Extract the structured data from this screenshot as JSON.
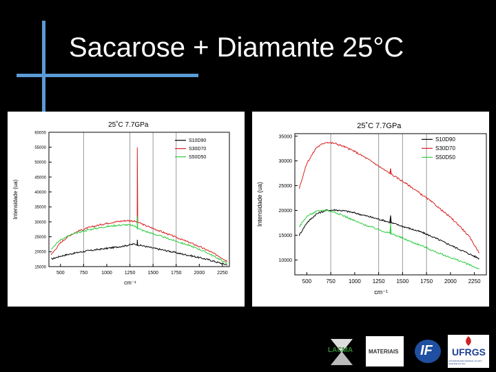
{
  "slide": {
    "title": "Sacarose + Diamante 25°C",
    "colors": {
      "background": "#000000",
      "accent": "#5b9bd5",
      "title": "#ffffff"
    }
  },
  "chart_data": [
    {
      "type": "line",
      "title": "25˚C 7.7GPa",
      "xlabel": "cm⁻¹",
      "ylabel": "Intensidade (ua)",
      "xlim": [
        375,
        2325
      ],
      "ylim": [
        15000,
        60000
      ],
      "xticks": [
        500,
        750,
        1000,
        1250,
        1500,
        1750,
        2000,
        2250
      ],
      "yticks": [
        15000,
        20000,
        25000,
        30000,
        35000,
        40000,
        45000,
        50000,
        55000,
        60000
      ],
      "vlines": [
        750,
        1250,
        1500,
        1750
      ],
      "legend_position": "top-right",
      "series": [
        {
          "name": "S10D90",
          "color": "#000000",
          "x": [
            400,
            500,
            600,
            700,
            800,
            900,
            1000,
            1100,
            1200,
            1250,
            1300,
            1350,
            1400,
            1500,
            1600,
            1700,
            1800,
            1900,
            2000,
            2100,
            2200,
            2250,
            2300
          ],
          "y": [
            17500,
            18500,
            19200,
            19800,
            20300,
            20700,
            21100,
            21500,
            22000,
            22300,
            22600,
            22200,
            21900,
            21200,
            20600,
            20000,
            19300,
            18700,
            18000,
            17300,
            16400,
            16000,
            15600
          ],
          "peaks": [
            {
              "x": 1330,
              "y": 24000
            }
          ]
        },
        {
          "name": "S30D70",
          "color": "#d62020",
          "x": [
            400,
            500,
            600,
            700,
            800,
            900,
            1000,
            1100,
            1200,
            1250,
            1300,
            1350,
            1400,
            1500,
            1600,
            1700,
            1800,
            1900,
            2000,
            2100,
            2200,
            2250,
            2300
          ],
          "y": [
            19000,
            23000,
            25500,
            27000,
            28000,
            28800,
            29500,
            30000,
            30400,
            30400,
            30200,
            29700,
            29000,
            27800,
            26600,
            25400,
            24200,
            23000,
            21700,
            20300,
            18700,
            17800,
            16800
          ],
          "peaks": [
            {
              "x": 1330,
              "y": 55000
            }
          ]
        },
        {
          "name": "S50D50",
          "color": "#2ecc40",
          "x": [
            400,
            500,
            600,
            700,
            800,
            900,
            1000,
            1100,
            1200,
            1250,
            1300,
            1350,
            1400,
            1500,
            1600,
            1700,
            1800,
            1900,
            2000,
            2100,
            2200,
            2250,
            2300
          ],
          "y": [
            21000,
            24000,
            25500,
            26500,
            27300,
            27900,
            28400,
            28800,
            29000,
            28900,
            28600,
            27600,
            27000,
            26000,
            25000,
            24000,
            23000,
            22000,
            20800,
            19400,
            17800,
            16900,
            16000
          ],
          "peaks": [
            {
              "x": 1330,
              "y": 32000
            }
          ]
        }
      ]
    },
    {
      "type": "line",
      "title": "25˚C 7.7GPa",
      "xlabel": "cm⁻¹",
      "ylabel": "Intensidade (ua)",
      "xlim": [
        375,
        2375
      ],
      "ylim": [
        7000,
        35500
      ],
      "xticks": [
        500,
        750,
        1000,
        1250,
        1500,
        1750,
        2000,
        2250
      ],
      "yticks": [
        10000,
        15000,
        20000,
        25000,
        30000,
        35000
      ],
      "vlines": [
        750,
        1250,
        1500,
        1750
      ],
      "legend_position": "top-right",
      "series": [
        {
          "name": "S10D90",
          "color": "#000000",
          "x": [
            420,
            500,
            600,
            700,
            800,
            900,
            1000,
            1100,
            1200,
            1300,
            1400,
            1500,
            1600,
            1700,
            1800,
            1900,
            2000,
            2100,
            2200,
            2300
          ],
          "y": [
            15000,
            17500,
            19300,
            20000,
            20100,
            19900,
            19500,
            19000,
            18500,
            18000,
            17400,
            16800,
            16200,
            15600,
            14800,
            13900,
            13000,
            12100,
            11200,
            10300
          ],
          "peaks": [
            {
              "x": 1375,
              "y": 19000
            }
          ]
        },
        {
          "name": "S30D70",
          "color": "#d62020",
          "x": [
            420,
            500,
            600,
            700,
            800,
            900,
            1000,
            1100,
            1200,
            1300,
            1400,
            1500,
            1600,
            1700,
            1800,
            1900,
            2000,
            2100,
            2200,
            2300
          ],
          "y": [
            24500,
            29500,
            32700,
            33800,
            33500,
            32800,
            31900,
            30800,
            29600,
            28300,
            27100,
            25900,
            24600,
            23200,
            21800,
            20200,
            18600,
            16800,
            14600,
            11500
          ],
          "peaks": [
            {
              "x": 1375,
              "y": 28500
            }
          ]
        },
        {
          "name": "S50D50",
          "color": "#2ecc40",
          "x": [
            420,
            500,
            600,
            700,
            800,
            900,
            1000,
            1100,
            1200,
            1300,
            1400,
            1500,
            1600,
            1700,
            1800,
            1900,
            2000,
            2100,
            2200,
            2300
          ],
          "y": [
            16700,
            18800,
            19800,
            20100,
            19600,
            18800,
            17900,
            17100,
            16500,
            15800,
            15200,
            14400,
            13600,
            12900,
            12000,
            11200,
            10500,
            9800,
            9000,
            8200
          ],
          "peaks": [
            {
              "x": 1375,
              "y": 17300
            }
          ]
        }
      ]
    }
  ],
  "logos": [
    {
      "name": "lacma-logo",
      "text": "LACMA",
      "color": "#2e8b2e"
    },
    {
      "name": "materials-logo",
      "text": "MATERIAIS",
      "color": "#333333"
    },
    {
      "name": "if-logo",
      "text": "IF",
      "color": "#1f4fa0"
    },
    {
      "name": "ufrgs-logo",
      "text": "UFRGS",
      "sub": "UNIVERSIDADE FEDERAL DO RIO GRANDE DO SUL",
      "color": "#1f3f8f",
      "accent": "#cc2222"
    }
  ]
}
